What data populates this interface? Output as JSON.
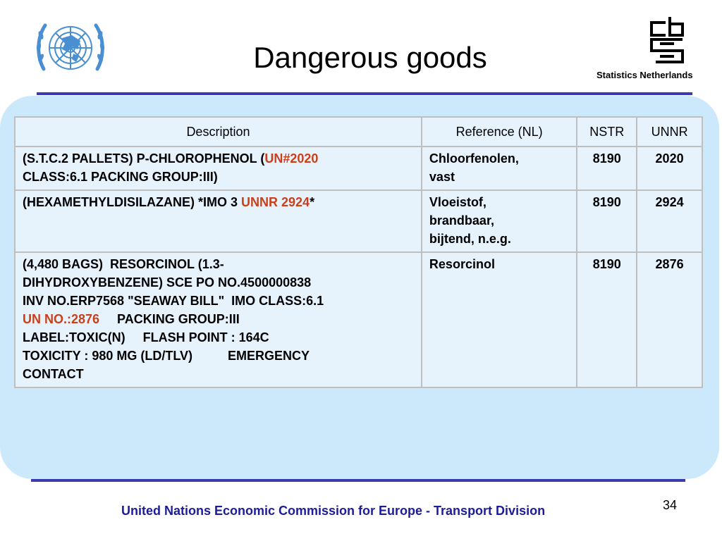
{
  "slide": {
    "title": "Dangerous goods",
    "logo_right_caption": "Statistics Netherlands",
    "page_number": "34",
    "footer": "United Nations Economic Commission for Europe - Transport Division"
  },
  "colors": {
    "panel": "#cce8fb",
    "table_bg": "#e6f3fd",
    "rule": "#3b3bb0",
    "highlight": "#c9401a",
    "footer_text": "#1c1c9a",
    "un_blue": "#4a8fd1"
  },
  "table": {
    "headers": [
      "Description",
      "Reference (NL)",
      "NSTR",
      "UNNR"
    ],
    "rows": [
      {
        "desc": {
          "p1": "(S.T.C.2 PALLETS) P-CHLOROPHENOL (",
          "hl": "UN#2020",
          "p2": "CLASS:6.1 PACKING GROUP:III)"
        },
        "ref": [
          "Chloorfenolen,",
          "vast"
        ],
        "nstr": "8190",
        "unnr": "2020"
      },
      {
        "desc": {
          "p1": "(HEXAMETHYLDISILAZANE) *IMO 3 ",
          "hl": "UNNR 2924",
          "p2": "*"
        },
        "ref": [
          "Vloeistof,",
          "brandbaar,",
          "bijtend, n.e.g."
        ],
        "nstr": "8190",
        "unnr": "2924"
      },
      {
        "desc": {
          "l1": "(4,480 BAGS)  RESORCINOL (1.3-",
          "l2": "DIHYDROXYBENZENE) SCE PO NO.4500000838",
          "l3": "INV NO.ERP7568 \"SEAWAY BILL\"  IMO CLASS:6.1",
          "hl": "UN NO.:2876",
          "l4": "     PACKING GROUP:III",
          "l5": "LABEL:TOXIC(N)     FLASH POINT : 164C",
          "l6": "TOXICITY : 980 MG (LD/TLV)          EMERGENCY",
          "l7": "CONTACT"
        },
        "ref": [
          "Resorcinol"
        ],
        "nstr": "8190",
        "unnr": "2876"
      }
    ]
  }
}
